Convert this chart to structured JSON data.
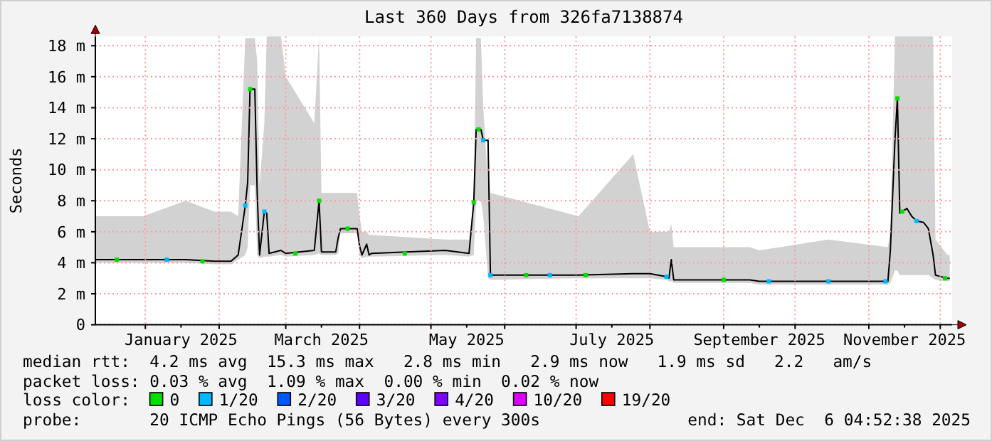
{
  "chart_data": {
    "type": "line",
    "title": "Last 360 Days from 326fa7138874",
    "ylabel": "Seconds",
    "xlim": [
      "2024-12-11",
      "2025-12-06"
    ],
    "xticks": [
      {
        "value": "2025-01-01",
        "label": null
      },
      {
        "value": "2025-01-16",
        "label": "January 2025"
      },
      {
        "value": "2025-02-01",
        "label": null
      },
      {
        "value": "2025-03-01",
        "label": null
      },
      {
        "value": "2025-03-16",
        "label": "March 2025"
      },
      {
        "value": "2025-04-01",
        "label": null
      },
      {
        "value": "2025-05-01",
        "label": null
      },
      {
        "value": "2025-05-16",
        "label": "May 2025"
      },
      {
        "value": "2025-06-01",
        "label": null
      },
      {
        "value": "2025-07-01",
        "label": null
      },
      {
        "value": "2025-07-16",
        "label": "July 2025"
      },
      {
        "value": "2025-08-01",
        "label": null
      },
      {
        "value": "2025-09-01",
        "label": null
      },
      {
        "value": "2025-09-16",
        "label": "September 2025"
      },
      {
        "value": "2025-10-01",
        "label": null
      },
      {
        "value": "2025-11-01",
        "label": null
      },
      {
        "value": "2025-11-16",
        "label": "November 2025"
      },
      {
        "value": "2025-12-01",
        "label": null
      }
    ],
    "ylim": [
      0,
      18.6
    ],
    "yticks": [
      0,
      {
        "value": 2,
        "label": "2 m"
      },
      {
        "value": 4,
        "label": "4 m"
      },
      {
        "value": 6,
        "label": "6 m"
      },
      {
        "value": 8,
        "label": "8 m"
      },
      {
        "value": 10,
        "label": "10 m"
      },
      {
        "value": 12,
        "label": "12 m"
      },
      {
        "value": 14,
        "label": "14 m"
      },
      {
        "value": 16,
        "label": "16 m"
      },
      {
        "value": 18,
        "label": "18 m"
      }
    ],
    "grid": true,
    "legend": "bottom",
    "legend_title": "loss color:",
    "line_style": "solid",
    "series": [
      {
        "color": "#000000",
        "marker": "none",
        "x": [
          "2024-12-11",
          "2024-12-31",
          "2025-01-18",
          "2025-01-30",
          "2025-02-06",
          "2025-02-09",
          "2025-02-12",
          "2025-02-13",
          "2025-02-14",
          "2025-02-16",
          "2025-02-17",
          "2025-02-18",
          "2025-02-20",
          "2025-02-21",
          "2025-02-22",
          "2025-02-27",
          "2025-03-01",
          "2025-03-13",
          "2025-03-15",
          "2025-03-16",
          "2025-03-22",
          "2025-03-23",
          "2025-03-24",
          "2025-03-31",
          "2025-04-01",
          "2025-04-02",
          "2025-04-04",
          "2025-04-05",
          "2025-04-06",
          "2025-05-07",
          "2025-05-17",
          "2025-05-19",
          "2025-05-20",
          "2025-05-22",
          "2025-05-23",
          "2025-05-25",
          "2025-05-26",
          "2025-07-02",
          "2025-07-25",
          "2025-08-01",
          "2025-08-08",
          "2025-08-09",
          "2025-08-10",
          "2025-08-11",
          "2025-09-12",
          "2025-09-16",
          "2025-10-15",
          "2025-11-09",
          "2025-11-10",
          "2025-11-12",
          "2025-11-13",
          "2025-11-14",
          "2025-11-17",
          "2025-11-19",
          "2025-11-21",
          "2025-11-24",
          "2025-11-26",
          "2025-11-28",
          "2025-11-29",
          "2025-12-04",
          "2025-12-05"
        ],
        "values": [
          4.2,
          4.2,
          4.2,
          4.1,
          4.1,
          4.5,
          7.7,
          9.2,
          15.2,
          15.2,
          8.5,
          4.5,
          7.3,
          7.2,
          4.6,
          4.8,
          4.6,
          4.8,
          8.0,
          4.7,
          4.7,
          5.6,
          6.2,
          6.2,
          5.1,
          4.5,
          5.2,
          4.5,
          4.6,
          4.8,
          4.6,
          7.9,
          12.6,
          12.6,
          11.9,
          11.9,
          3.2,
          3.2,
          3.3,
          3.3,
          3.1,
          3.0,
          4.2,
          2.9,
          2.9,
          2.8,
          2.8,
          2.8,
          4.7,
          12.0,
          14.6,
          7.2,
          7.5,
          7.0,
          6.7,
          6.6,
          6.2,
          4.5,
          3.2,
          3.0,
          3.0
        ],
        "lower": [
          4.0,
          4.0,
          4.0,
          3.9,
          3.9,
          4.2,
          4.5,
          5.0,
          9.0,
          9.0,
          4.5,
          4.3,
          4.4,
          4.4,
          4.4,
          4.5,
          4.4,
          4.5,
          4.6,
          4.5,
          4.5,
          4.6,
          5.9,
          5.9,
          4.5,
          4.3,
          4.4,
          4.4,
          4.4,
          4.5,
          4.4,
          4.5,
          8.0,
          8.0,
          7.0,
          3.0,
          2.9,
          3.0,
          3.0,
          3.0,
          2.9,
          2.8,
          2.8,
          2.7,
          2.7,
          2.6,
          2.6,
          2.6,
          2.7,
          3.5,
          3.5,
          3.2,
          3.2,
          3.2,
          3.2,
          3.2,
          3.2,
          3.0,
          2.9,
          2.8,
          2.8
        ],
        "upper": [
          7.0,
          7.0,
          8.0,
          7.3,
          7.3,
          7.0,
          18.5,
          18.5,
          18.5,
          18.5,
          17.0,
          9.0,
          13.0,
          18.6,
          18.6,
          18.6,
          16.0,
          13.0,
          18.6,
          8.5,
          8.5,
          8.5,
          8.5,
          8.5,
          7.0,
          6.0,
          6.0,
          5.8,
          5.8,
          5.5,
          5.5,
          8.0,
          18.5,
          18.5,
          14.0,
          9.0,
          8.5,
          7.0,
          11.0,
          6.0,
          6.0,
          6.0,
          6.5,
          5.0,
          5.0,
          4.8,
          5.5,
          5.0,
          6.0,
          18.6,
          18.6,
          18.6,
          18.6,
          18.6,
          18.6,
          18.6,
          18.6,
          18.6,
          5.5,
          4.5,
          4.5
        ]
      },
      {
        "name": "0",
        "type": "scatter",
        "marker": "square",
        "color": "#00e000",
        "x": [
          "2024-12-20",
          "2025-01-25",
          "2025-02-14",
          "2025-03-05",
          "2025-03-15",
          "2025-03-27",
          "2025-04-20",
          "2025-05-19",
          "2025-05-21",
          "2025-06-10",
          "2025-07-05",
          "2025-09-01",
          "2025-11-13",
          "2025-11-15",
          "2025-12-03"
        ],
        "values": [
          4.2,
          4.1,
          15.2,
          4.6,
          8.0,
          6.2,
          4.6,
          7.9,
          12.6,
          3.2,
          3.2,
          2.9,
          14.6,
          7.3,
          3.0
        ]
      },
      {
        "name": "1/20",
        "type": "scatter",
        "marker": "square",
        "color": "#00b8ff",
        "x": [
          "2025-01-10",
          "2025-02-12",
          "2025-02-20",
          "2025-05-23",
          "2025-05-26",
          "2025-06-20",
          "2025-08-08",
          "2025-09-20",
          "2025-10-15",
          "2025-11-08",
          "2025-11-21"
        ],
        "values": [
          4.2,
          7.7,
          7.3,
          11.9,
          3.2,
          3.2,
          3.1,
          2.8,
          2.8,
          2.8,
          6.7
        ]
      },
      {
        "name": "2/20",
        "type": "scatter",
        "marker": "square",
        "color": "#0059ff"
      },
      {
        "name": "3/20",
        "type": "scatter",
        "marker": "square",
        "color": "#5e00ff"
      },
      {
        "name": "4/20",
        "type": "scatter",
        "marker": "square",
        "color": "#7e00ff"
      },
      {
        "name": "10/20",
        "type": "scatter",
        "marker": "square",
        "color": "#dd00ff"
      },
      {
        "name": "19/20",
        "type": "scatter",
        "marker": "square",
        "color": "#ff0000"
      }
    ],
    "annotations": [
      "median rtt:  4.2 ms avg  15.3 ms max   2.8 ms min   2.9 ms now   1.9 ms sd   2.2   am/s",
      "packet loss: 0.03 % avg  1.09 % max  0.00 % min  0.02 % now",
      "probe:       20 ICMP Echo Pings (56 Bytes) every 300s",
      "end: Sat Dec  6 04:52:38 2025"
    ]
  }
}
